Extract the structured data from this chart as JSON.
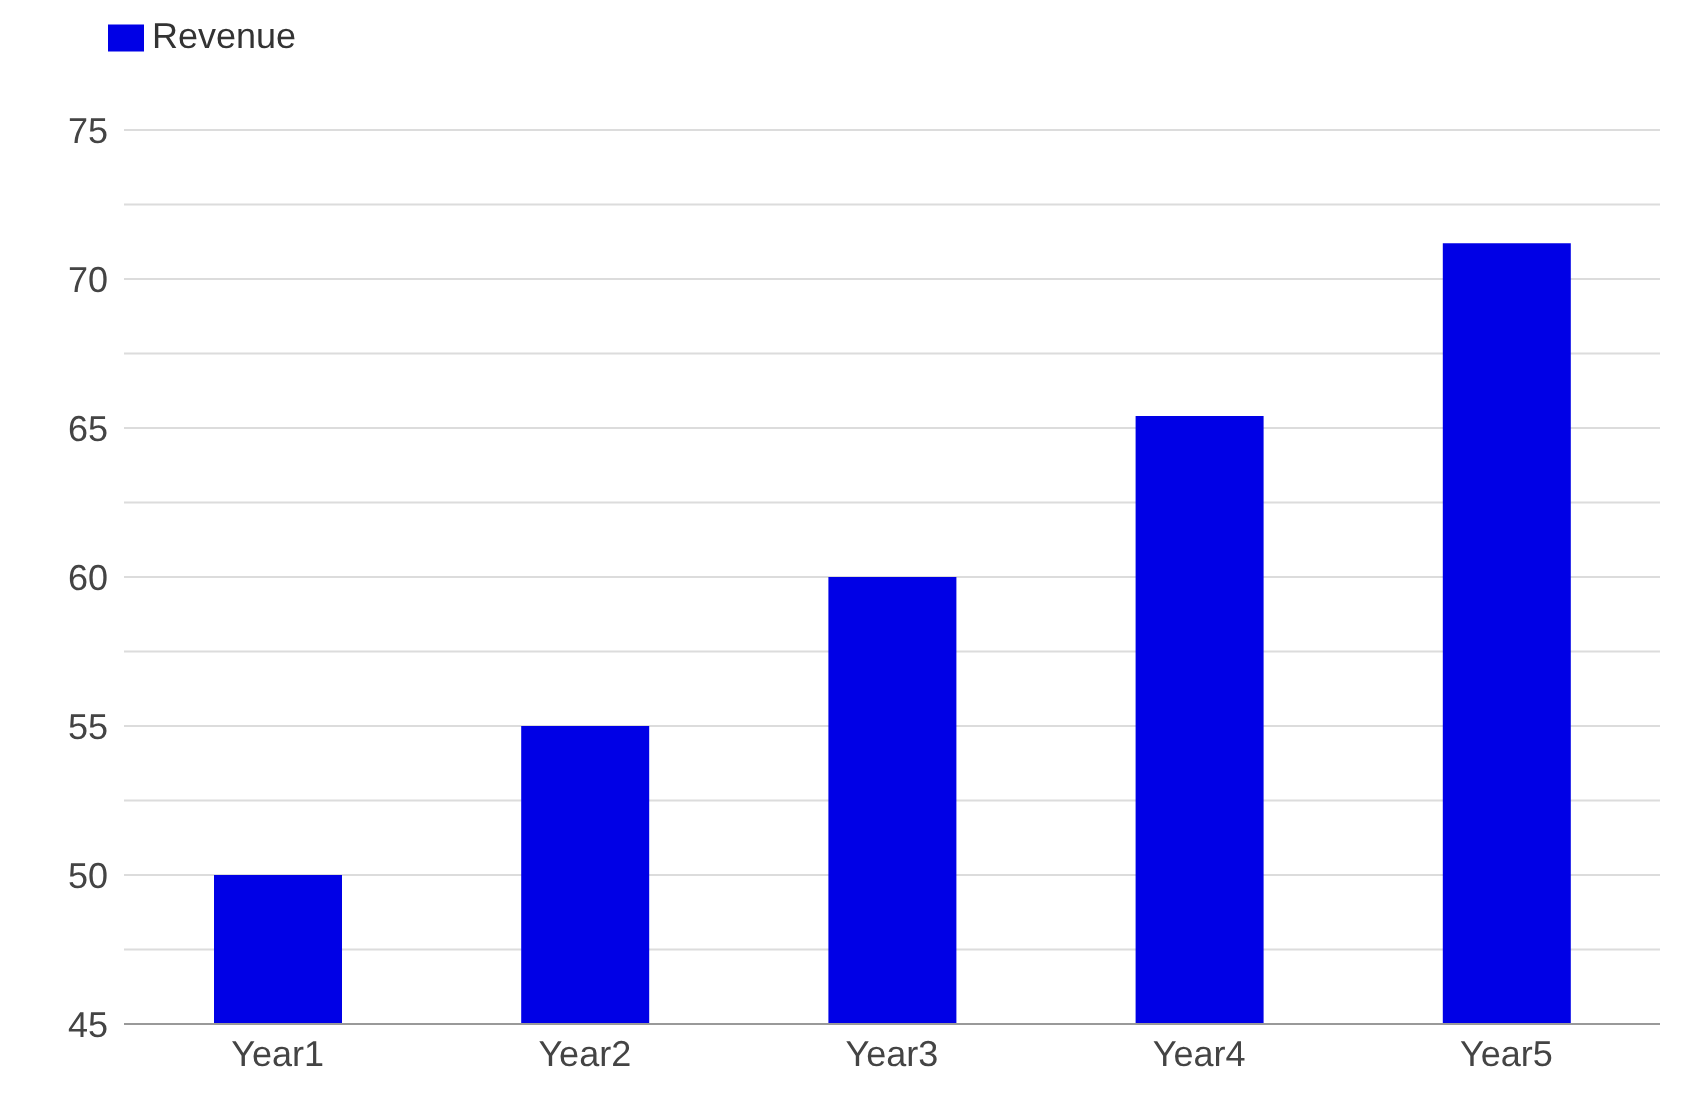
{
  "chart_data": {
    "type": "bar",
    "categories": [
      "Year1",
      "Year2",
      "Year3",
      "Year4",
      "Year5"
    ],
    "series": [
      {
        "name": "Revenue",
        "color": "#0000e6",
        "values": [
          50,
          55,
          60,
          65.4,
          71.2
        ]
      }
    ],
    "ylim": [
      45,
      75
    ],
    "yticks": [
      45,
      {
        "value": 47.5,
        "label": null
      },
      50,
      {
        "value": 52.5,
        "label": null
      },
      55,
      {
        "value": 57.5,
        "label": null
      },
      60,
      {
        "value": 62.5,
        "label": null
      },
      65,
      {
        "value": 67.5,
        "label": null
      },
      70,
      {
        "value": 72.5,
        "label": null
      },
      75
    ],
    "grid": "y",
    "legend": "top left"
  }
}
